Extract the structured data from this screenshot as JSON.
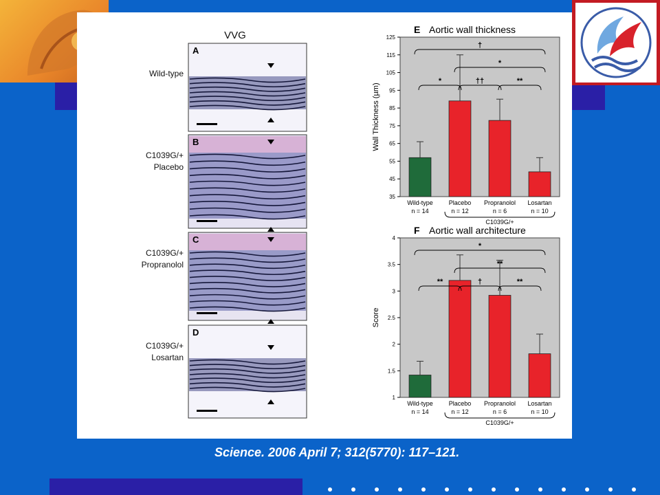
{
  "slide": {
    "citation": "Science. 2006 April 7; 312(5770): 117–121."
  },
  "micrographs": {
    "stain_title": "VVG",
    "panels": [
      {
        "letter": "A",
        "label_lines": [
          "Wild-type"
        ]
      },
      {
        "letter": "B",
        "label_lines": [
          "C1039G/+",
          "Placebo"
        ]
      },
      {
        "letter": "C",
        "label_lines": [
          "C1039G/+",
          "Propranolol"
        ]
      },
      {
        "letter": "D",
        "label_lines": [
          "C1039G/+",
          "Losartan"
        ]
      }
    ]
  },
  "chart_data": [
    {
      "type": "bar",
      "panel_letter": "E",
      "title": "Aortic wall thickness",
      "ylabel": "Wall Thickness (µm)",
      "ylim": [
        35,
        125
      ],
      "yticks": [
        35,
        45,
        55,
        65,
        75,
        85,
        95,
        105,
        115,
        125
      ],
      "categories": [
        "Wild-type",
        "Placebo",
        "Propranolol",
        "Losartan"
      ],
      "n_labels": [
        "n = 14",
        "n = 12",
        "n = 6",
        "n = 10"
      ],
      "group_label": "C1039G/+",
      "values": [
        57,
        89,
        78,
        49
      ],
      "errors": [
        9,
        26,
        12,
        8
      ],
      "bar_colors": [
        "#1f6b3a",
        "#e8232a",
        "#e8232a",
        "#e8232a"
      ],
      "significance": [
        {
          "from": 0,
          "to": 3,
          "label": "†"
        },
        {
          "from": 1,
          "to": 3,
          "label": "*"
        },
        {
          "from": 0,
          "to": 1,
          "label": "*"
        },
        {
          "from": 1,
          "to": 2,
          "label": "††"
        },
        {
          "from": 2,
          "to": 3,
          "label": "**"
        }
      ]
    },
    {
      "type": "bar",
      "panel_letter": "F",
      "title": "Aortic wall architecture",
      "ylabel": "Score",
      "ylim": [
        1,
        4
      ],
      "yticks": [
        1,
        1.5,
        2,
        2.5,
        3,
        3.5,
        4
      ],
      "categories": [
        "Wild-type",
        "Placebo",
        "Propranolol",
        "Losartan"
      ],
      "n_labels": [
        "n = 14",
        "n = 12",
        "n = 6",
        "n = 10"
      ],
      "group_label": "C1039G/+",
      "values": [
        1.42,
        3.2,
        2.92,
        1.82
      ],
      "errors": [
        0.26,
        0.48,
        0.66,
        0.37
      ],
      "bar_colors": [
        "#1f6b3a",
        "#e8232a",
        "#e8232a",
        "#e8232a"
      ],
      "significance": [
        {
          "from": 0,
          "to": 3,
          "label": "*"
        },
        {
          "from": 1,
          "to": 3,
          "label": "**"
        },
        {
          "from": 0,
          "to": 1,
          "label": "**"
        },
        {
          "from": 1,
          "to": 2,
          "label": "†"
        },
        {
          "from": 2,
          "to": 3,
          "label": "**"
        }
      ]
    }
  ]
}
